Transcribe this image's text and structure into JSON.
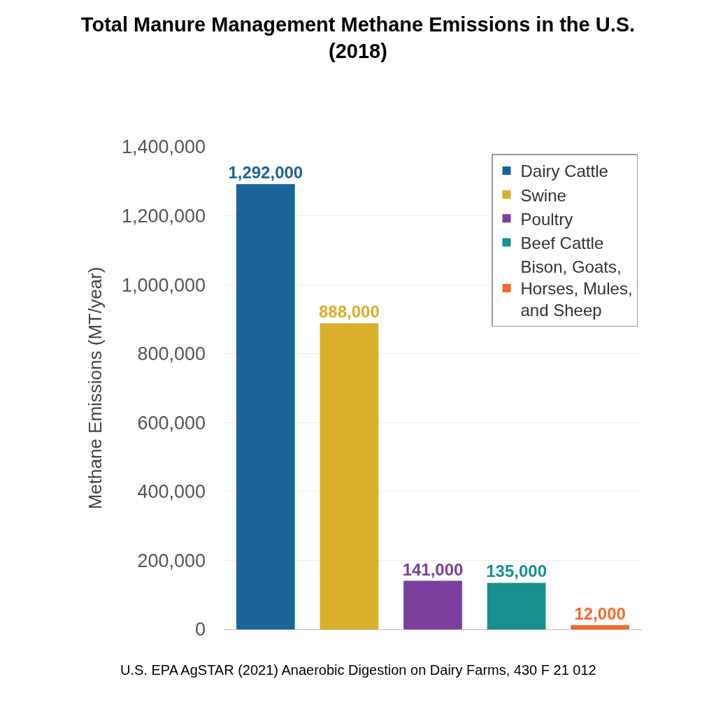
{
  "chart_data": {
    "type": "bar",
    "title": "Total Manure Management Methane Emissions in the U.S. (2018)",
    "ylabel": "Methane Emissions (MT/year)",
    "categories": [
      null,
      null,
      null,
      null,
      null
    ],
    "series": [
      {
        "name": "Dairy Cattle",
        "color": "#1a6499",
        "values": [
          1292000,
          null,
          null,
          null,
          null
        ],
        "value_labels": [
          "1,292,000",
          null,
          null,
          null,
          null
        ]
      },
      {
        "name": "Swine",
        "color": "#d9ae28",
        "values": [
          null,
          888000,
          null,
          null,
          null
        ],
        "value_labels": [
          null,
          "888,000",
          null,
          null,
          null
        ]
      },
      {
        "name": "Poultry",
        "color": "#7b3f9e",
        "values": [
          null,
          null,
          141000,
          null,
          null
        ],
        "value_labels": [
          null,
          null,
          "141,000",
          null,
          null
        ]
      },
      {
        "name": "Beef Cattle",
        "color": "#17908f",
        "values": [
          null,
          null,
          null,
          135000,
          null
        ],
        "value_labels": [
          null,
          null,
          null,
          "135,000",
          null
        ]
      },
      {
        "name": "Bison, Goats, Horses, Mules, and Sheep",
        "color": "#f26b2a",
        "values": [
          null,
          null,
          null,
          null,
          12000
        ],
        "value_labels": [
          null,
          null,
          null,
          null,
          "12,000"
        ]
      }
    ],
    "ylim": [
      0,
      1400000
    ],
    "yticks": [
      {
        "value": 0,
        "label": "0"
      },
      {
        "value": 200000,
        "label": "200,000"
      },
      {
        "value": 400000,
        "label": "400,000"
      },
      {
        "value": 600000,
        "label": "600,000"
      },
      {
        "value": 800000,
        "label": "800,000"
      },
      {
        "value": 1000000,
        "label": "1,000,000"
      },
      {
        "value": 1200000,
        "label": "1,200,000"
      },
      {
        "value": 1400000,
        "label": "1,400,000"
      }
    ],
    "grid": "y",
    "legend": "top right",
    "tick_labels": "y",
    "annotations": [
      "U.S. EPA AgSTAR (2021) Anaerobic Digestion on Dairy Farms, 430 F 21 012"
    ]
  }
}
